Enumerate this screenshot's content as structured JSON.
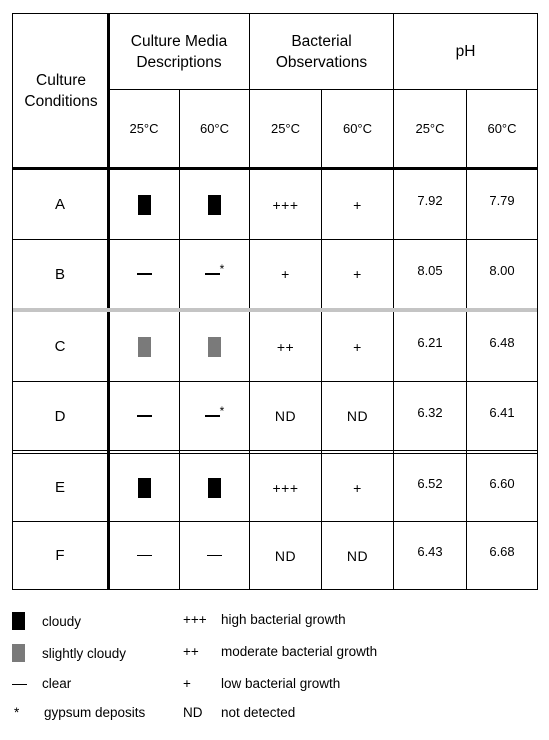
{
  "header": {
    "conditions": "Culture Conditions",
    "media": "Culture Media Descriptions",
    "bacterial": "Bacterial Observations",
    "ph": "pH",
    "temp_low": "25°C",
    "temp_high": "60°C"
  },
  "rows": [
    {
      "label": "A",
      "media25": "cloudy",
      "media60": "cloudy",
      "media25_gypsum": false,
      "media60_gypsum": false,
      "bact25": "+++",
      "bact60": "+",
      "ph25": "7.92",
      "ph60": "7.79"
    },
    {
      "label": "B",
      "media25": "clear",
      "media60": "clear",
      "media25_gypsum": false,
      "media60_gypsum": true,
      "bact25": "+",
      "bact60": "+",
      "ph25": "8.05",
      "ph60": "8.00"
    },
    {
      "label": "C",
      "media25": "slightly-cloudy",
      "media60": "slightly-cloudy",
      "media25_gypsum": false,
      "media60_gypsum": false,
      "bact25": "++",
      "bact60": "+",
      "ph25": "6.21",
      "ph60": "6.48"
    },
    {
      "label": "D",
      "media25": "clear",
      "media60": "clear",
      "media25_gypsum": false,
      "media60_gypsum": true,
      "bact25": "ND",
      "bact60": "ND",
      "ph25": "6.32",
      "ph60": "6.41"
    },
    {
      "label": "E",
      "media25": "cloudy",
      "media60": "cloudy",
      "media25_gypsum": false,
      "media60_gypsum": false,
      "bact25": "+++",
      "bact60": "+",
      "ph25": "6.52",
      "ph60": "6.60"
    },
    {
      "label": "F",
      "media25": "clear",
      "media60": "clear",
      "media25_gypsum": false,
      "media60_gypsum": false,
      "bact25": "ND",
      "bact60": "ND",
      "ph25": "6.43",
      "ph60": "6.68"
    }
  ],
  "legend": {
    "left": [
      {
        "symbol": "cloudy",
        "text": "cloudy"
      },
      {
        "symbol": "slightly-cloudy",
        "text": "slightly cloudy"
      },
      {
        "symbol": "clear",
        "text": "clear"
      },
      {
        "symbol": "*",
        "text": "gypsum deposits"
      }
    ],
    "right": [
      {
        "symbol": "+++",
        "text": "high bacterial growth"
      },
      {
        "symbol": "++",
        "text": "moderate bacterial growth"
      },
      {
        "symbol": "+",
        "text": "low bacterial growth"
      },
      {
        "symbol": "ND",
        "text": "not detected"
      }
    ]
  },
  "colors": {
    "cloudy": "#000000",
    "slightly_cloudy": "#7a7a7a",
    "row_separator": "#c4c4c4"
  }
}
